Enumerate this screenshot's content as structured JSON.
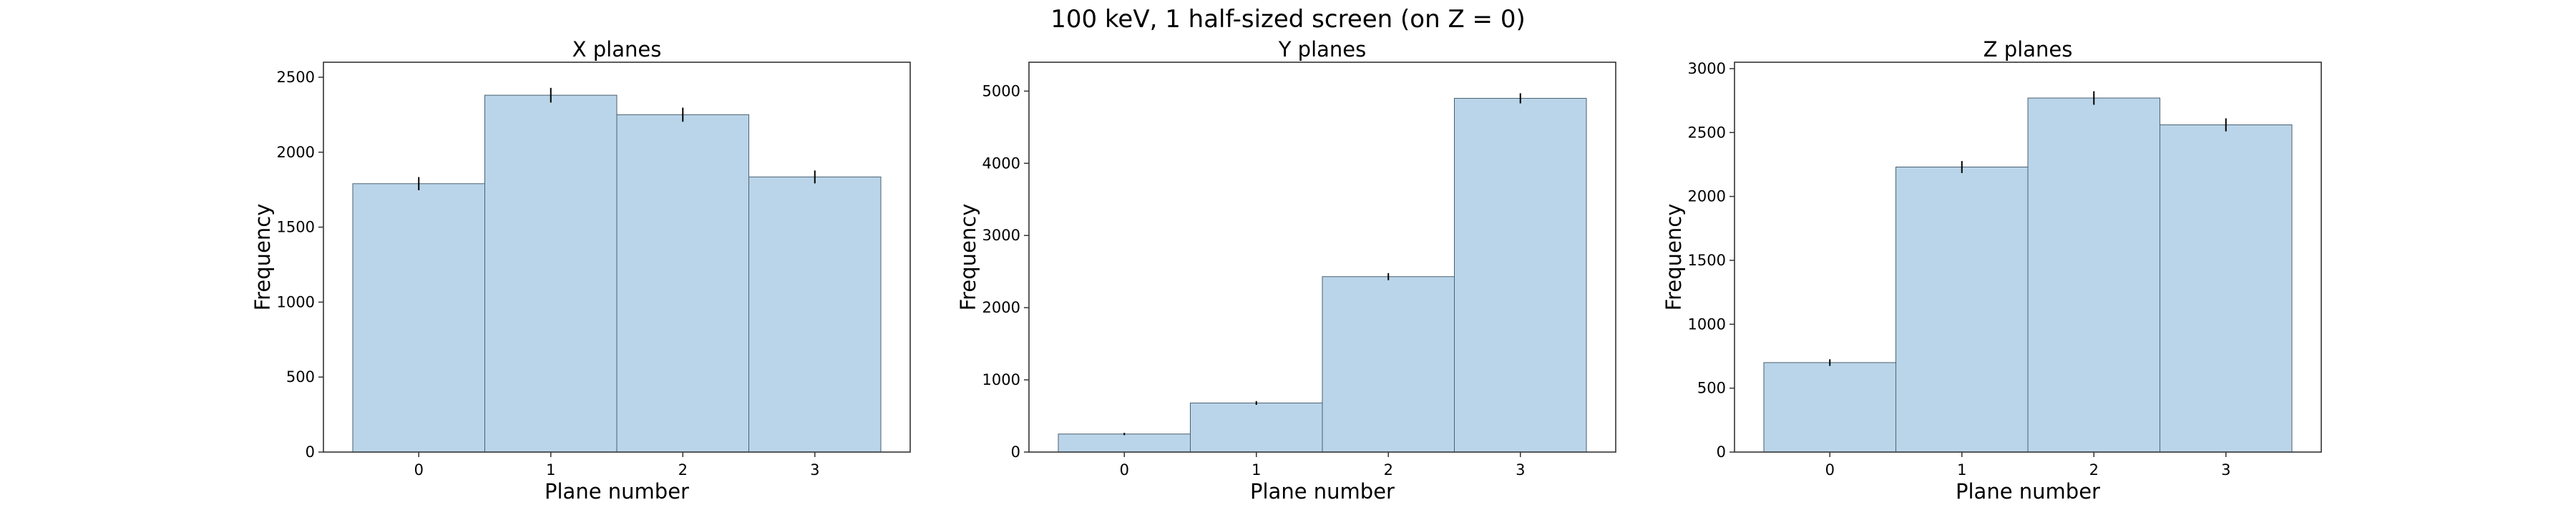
{
  "figure": {
    "title": "100 keV, 1 half-sized screen (on Z = 0)"
  },
  "colors": {
    "bar_fill": "#9dc3df",
    "bar_stroke": "#4a6070",
    "error_bar": "#000000",
    "axes": "#333333"
  },
  "chart_data": [
    {
      "type": "bar",
      "title": "X planes",
      "xlabel": "Plane number",
      "ylabel": "Frequency",
      "categories": [
        "0",
        "1",
        "2",
        "3"
      ],
      "values": [
        1790,
        2380,
        2250,
        1835
      ],
      "errors": [
        44,
        49,
        47,
        43
      ],
      "ylim": [
        0,
        2600
      ],
      "yticks": [
        0,
        500,
        1000,
        1500,
        2000,
        2500
      ],
      "grid": false
    },
    {
      "type": "bar",
      "title": "Y planes",
      "xlabel": "Plane number",
      "ylabel": "Frequency",
      "categories": [
        "0",
        "1",
        "2",
        "3"
      ],
      "values": [
        250,
        680,
        2430,
        4900
      ],
      "errors": [
        16,
        26,
        49,
        70
      ],
      "ylim": [
        0,
        5400
      ],
      "yticks": [
        0,
        1000,
        2000,
        3000,
        4000,
        5000
      ],
      "grid": false
    },
    {
      "type": "bar",
      "title": "Z planes",
      "xlabel": "Plane number",
      "ylabel": "Frequency",
      "categories": [
        "0",
        "1",
        "2",
        "3"
      ],
      "values": [
        700,
        2230,
        2770,
        2560
      ],
      "errors": [
        26,
        47,
        53,
        51
      ],
      "ylim": [
        0,
        3050
      ],
      "yticks": [
        0,
        500,
        1000,
        1500,
        2000,
        2500,
        3000
      ],
      "grid": false
    }
  ]
}
